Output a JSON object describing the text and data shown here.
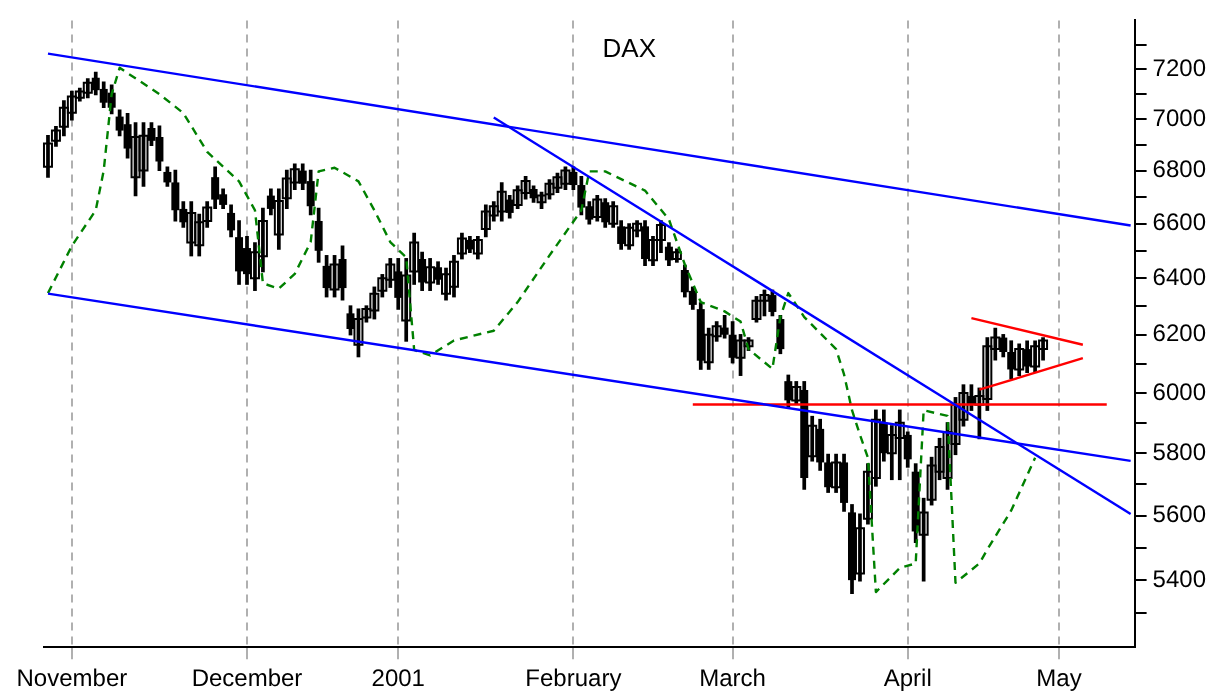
{
  "chart_data": {
    "type": "candlestick",
    "title": "DAX",
    "color": "#000000",
    "log": "y",
    "grid": "x",
    "legend": false,
    "categories": [
      null,
      null,
      null,
      "November",
      null,
      null,
      null,
      null,
      null,
      null,
      null,
      null,
      null,
      null,
      null,
      null,
      null,
      null,
      null,
      null,
      null,
      null,
      null,
      null,
      null,
      "December",
      null,
      null,
      null,
      null,
      null,
      null,
      null,
      null,
      null,
      null,
      null,
      null,
      null,
      null,
      null,
      null,
      null,
      null,
      "2001",
      null,
      null,
      null,
      null,
      null,
      null,
      null,
      null,
      null,
      null,
      null,
      null,
      null,
      null,
      null,
      null,
      null,
      null,
      null,
      null,
      null,
      "February",
      null,
      null,
      null,
      null,
      null,
      null,
      null,
      null,
      null,
      null,
      null,
      null,
      null,
      null,
      null,
      null,
      null,
      null,
      null,
      "March",
      null,
      null,
      null,
      null,
      null,
      null,
      null,
      null,
      null,
      null,
      null,
      null,
      null,
      null,
      null,
      null,
      null,
      null,
      null,
      null,
      null,
      "April",
      null,
      null,
      null,
      null,
      null,
      null,
      null,
      null,
      null,
      null,
      null,
      null,
      null,
      null,
      null,
      null,
      null,
      null,
      "May",
      null,
      null,
      null,
      null,
      null,
      null,
      null,
      null,
      null
    ],
    "ohlc": [
      [
        6815,
        6935,
        6775,
        6905
      ],
      [
        6915,
        6970,
        6895,
        6955
      ],
      [
        6970,
        7072,
        6935,
        7045
      ],
      [
        7025,
        7110,
        6997,
        7090
      ],
      [
        7085,
        7122,
        7072,
        7110
      ],
      [
        7105,
        7160,
        7085,
        7145
      ],
      [
        7165,
        7186,
        7097,
        7115
      ],
      [
        7120,
        7147,
        7047,
        7065
      ],
      [
        7105,
        7135,
        7022,
        7045
      ],
      [
        7010,
        7035,
        6935,
        6955
      ],
      [
        6980,
        7022,
        6849,
        6885
      ],
      [
        6775,
        6985,
        6705,
        6930
      ],
      [
        6800,
        6985,
        6741,
        6935
      ],
      [
        6965,
        6985,
        6897,
        6915
      ],
      [
        6930,
        6972,
        6801,
        6835
      ],
      [
        6795,
        6813,
        6741,
        6755
      ],
      [
        6755,
        6801,
        6610,
        6650
      ],
      [
        6655,
        6681,
        6587,
        6605
      ],
      [
        6530,
        6681,
        6482,
        6640
      ],
      [
        6520,
        6634,
        6482,
        6605
      ],
      [
        6610,
        6681,
        6587,
        6660
      ],
      [
        6775,
        6813,
        6657,
        6690
      ],
      [
        6710,
        6729,
        6657,
        6670
      ],
      [
        6640,
        6669,
        6552,
        6575
      ],
      [
        6550,
        6610,
        6379,
        6425
      ],
      [
        6510,
        6552,
        6379,
        6415
      ],
      [
        6400,
        6529,
        6357,
        6495
      ],
      [
        6480,
        6657,
        6424,
        6610
      ],
      [
        6705,
        6729,
        6634,
        6655
      ],
      [
        6560,
        6729,
        6506,
        6685
      ],
      [
        6695,
        6801,
        6657,
        6770
      ],
      [
        6755,
        6825,
        6729,
        6805
      ],
      [
        6800,
        6825,
        6729,
        6750
      ],
      [
        6760,
        6801,
        6634,
        6665
      ],
      [
        6610,
        6657,
        6459,
        6500
      ],
      [
        6445,
        6482,
        6334,
        6365
      ],
      [
        6360,
        6482,
        6334,
        6450
      ],
      [
        6470,
        6517,
        6323,
        6365
      ],
      [
        6275,
        6301,
        6200,
        6220
      ],
      [
        6165,
        6290,
        6124,
        6255
      ],
      [
        6260,
        6301,
        6245,
        6290
      ],
      [
        6285,
        6368,
        6256,
        6345
      ],
      [
        6355,
        6413,
        6334,
        6400
      ],
      [
        6395,
        6471,
        6368,
        6450
      ],
      [
        6425,
        6471,
        6290,
        6330
      ],
      [
        6250,
        6471,
        6178,
        6410
      ],
      [
        6425,
        6564,
        6379,
        6530
      ],
      [
        6470,
        6494,
        6357,
        6385
      ],
      [
        6385,
        6471,
        6357,
        6440
      ],
      [
        6440,
        6459,
        6379,
        6395
      ],
      [
        6345,
        6436,
        6323,
        6415
      ],
      [
        6370,
        6482,
        6334,
        6460
      ],
      [
        6490,
        6564,
        6471,
        6545
      ],
      [
        6540,
        6552,
        6494,
        6505
      ],
      [
        6490,
        6552,
        6471,
        6540
      ],
      [
        6580,
        6669,
        6552,
        6645
      ],
      [
        6630,
        6681,
        6610,
        6665
      ],
      [
        6645,
        6753,
        6610,
        6720
      ],
      [
        6690,
        6705,
        6622,
        6640
      ],
      [
        6670,
        6741,
        6657,
        6725
      ],
      [
        6715,
        6777,
        6693,
        6760
      ],
      [
        6730,
        6741,
        6681,
        6695
      ],
      [
        6680,
        6717,
        6657,
        6705
      ],
      [
        6710,
        6765,
        6693,
        6750
      ],
      [
        6735,
        6789,
        6717,
        6775
      ],
      [
        6750,
        6813,
        6729,
        6800
      ],
      [
        6795,
        6813,
        6729,
        6745
      ],
      [
        6745,
        6777,
        6634,
        6660
      ],
      [
        6665,
        6681,
        6599,
        6615
      ],
      [
        6625,
        6705,
        6610,
        6690
      ],
      [
        6680,
        6693,
        6587,
        6605
      ],
      [
        6600,
        6681,
        6587,
        6665
      ],
      [
        6590,
        6610,
        6506,
        6525
      ],
      [
        6520,
        6599,
        6506,
        6585
      ],
      [
        6575,
        6610,
        6552,
        6600
      ],
      [
        6590,
        6610,
        6447,
        6470
      ],
      [
        6465,
        6552,
        6447,
        6540
      ],
      [
        6540,
        6610,
        6494,
        6595
      ],
      [
        6515,
        6529,
        6447,
        6465
      ],
      [
        6470,
        6506,
        6459,
        6495
      ],
      [
        6430,
        6447,
        6334,
        6350
      ],
      [
        6355,
        6368,
        6290,
        6305
      ],
      [
        6290,
        6312,
        6081,
        6110
      ],
      [
        6105,
        6222,
        6081,
        6200
      ],
      [
        6195,
        6245,
        6178,
        6230
      ],
      [
        6225,
        6267,
        6189,
        6200
      ],
      [
        6200,
        6245,
        6103,
        6120
      ],
      [
        6120,
        6200,
        6060,
        6180
      ],
      [
        6160,
        6189,
        6146,
        6180
      ],
      [
        6255,
        6334,
        6245,
        6320
      ],
      [
        6320,
        6357,
        6267,
        6340
      ],
      [
        6340,
        6357,
        6267,
        6280
      ],
      [
        6255,
        6267,
        6135,
        6150
      ],
      [
        6040,
        6060,
        5953,
        5975
      ],
      [
        5975,
        6038,
        5963,
        6020
      ],
      [
        6010,
        6038,
        5684,
        5720
      ],
      [
        5790,
        5921,
        5775,
        5890
      ],
      [
        5880,
        5911,
        5745,
        5770
      ],
      [
        5770,
        5796,
        5674,
        5690
      ],
      [
        5690,
        5796,
        5674,
        5770
      ],
      [
        5770,
        5796,
        5614,
        5640
      ],
      [
        5610,
        5634,
        5360,
        5400
      ],
      [
        5420,
        5604,
        5398,
        5560
      ],
      [
        5590,
        5765,
        5574,
        5740
      ],
      [
        5720,
        5942,
        5694,
        5910
      ],
      [
        5900,
        5942,
        5775,
        5800
      ],
      [
        5800,
        5890,
        5715,
        5860
      ],
      [
        5850,
        5942,
        5715,
        5900
      ],
      [
        5860,
        5869,
        5755,
        5780
      ],
      [
        5740,
        5765,
        5516,
        5550
      ],
      [
        5540,
        5654,
        5398,
        5610
      ],
      [
        5650,
        5786,
        5634,
        5760
      ],
      [
        5740,
        5848,
        5715,
        5820
      ],
      [
        5720,
        5900,
        5684,
        5870
      ],
      [
        5830,
        5984,
        5796,
        5960
      ],
      [
        5910,
        6027,
        5890,
        6000
      ],
      [
        5990,
        6027,
        5942,
        5960
      ],
      [
        5960,
        6016,
        5848,
        5990
      ],
      [
        5980,
        6189,
        5942,
        6160
      ],
      [
        6150,
        6222,
        6113,
        6190
      ],
      [
        6190,
        6200,
        6124,
        6140
      ],
      [
        6140,
        6178,
        6049,
        6080
      ],
      [
        6080,
        6167,
        6060,
        6150
      ],
      [
        6150,
        6178,
        6070,
        6090
      ],
      [
        6090,
        6178,
        6070,
        6160
      ],
      [
        6150,
        6189,
        6113,
        6180
      ],
      null,
      null,
      null,
      null,
      null,
      null,
      null,
      null,
      null,
      null,
      null
    ],
    "ylim": [
      5200,
      7400
    ],
    "yticks": [
      {
        "value": 5300,
        "label": null
      },
      5400,
      {
        "value": 5500,
        "label": null
      },
      5600,
      {
        "value": 5700,
        "label": null
      },
      5800,
      {
        "value": 5900,
        "label": null
      },
      6000,
      {
        "value": 6100,
        "label": null
      },
      6200,
      {
        "value": 6300,
        "label": null
      },
      6400,
      {
        "value": 6500,
        "label": null
      },
      6600,
      {
        "value": 6700,
        "label": null
      },
      6800,
      {
        "value": 6900,
        "label": null
      },
      7000,
      {
        "value": 7100,
        "label": null
      },
      7200,
      {
        "value": 7300,
        "label": null
      }
    ],
    "series": [
      {
        "type": "line",
        "color": "#0000ff",
        "values": [
          7263,
          null,
          null,
          null,
          null,
          null,
          null,
          null,
          null,
          null,
          null,
          null,
          null,
          null,
          null,
          null,
          null,
          null,
          null,
          null,
          null,
          null,
          null,
          null,
          null,
          null,
          null,
          null,
          null,
          null,
          null,
          null,
          null,
          null,
          null,
          null,
          null,
          null,
          null,
          null,
          null,
          null,
          null,
          null,
          null,
          null,
          null,
          null,
          null,
          null,
          null,
          null,
          null,
          null,
          null,
          null,
          null,
          null,
          null,
          null,
          null,
          null,
          null,
          null,
          null,
          null,
          null,
          null,
          null,
          null,
          null,
          null,
          null,
          null,
          null,
          null,
          null,
          null,
          null,
          null,
          null,
          null,
          null,
          null,
          null,
          null,
          null,
          null,
          null,
          null,
          null,
          null,
          null,
          null,
          null,
          null,
          null,
          null,
          null,
          null,
          null,
          null,
          null,
          null,
          null,
          null,
          null,
          null,
          null,
          null,
          null,
          null,
          null,
          null,
          null,
          null,
          null,
          null,
          null,
          null,
          null,
          null,
          null,
          null,
          null,
          null,
          null,
          null,
          null,
          null,
          null,
          null,
          null,
          null,
          null,
          null,
          6593
        ]
      },
      {
        "type": "line",
        "color": "#0000ff",
        "values": [
          6345,
          null,
          null,
          null,
          null,
          null,
          null,
          null,
          null,
          null,
          null,
          null,
          null,
          null,
          null,
          null,
          null,
          null,
          null,
          null,
          null,
          null,
          null,
          null,
          null,
          null,
          null,
          null,
          null,
          null,
          null,
          null,
          null,
          null,
          null,
          null,
          null,
          null,
          null,
          null,
          null,
          null,
          null,
          null,
          null,
          null,
          null,
          null,
          null,
          null,
          null,
          null,
          null,
          null,
          null,
          null,
          null,
          null,
          null,
          null,
          null,
          null,
          null,
          null,
          null,
          null,
          null,
          null,
          null,
          null,
          null,
          null,
          null,
          null,
          null,
          null,
          null,
          null,
          null,
          null,
          null,
          null,
          null,
          null,
          null,
          null,
          null,
          null,
          null,
          null,
          null,
          null,
          null,
          null,
          null,
          null,
          null,
          null,
          null,
          null,
          null,
          null,
          null,
          null,
          null,
          null,
          null,
          null,
          null,
          null,
          null,
          null,
          null,
          null,
          null,
          null,
          null,
          null,
          null,
          null,
          null,
          null,
          null,
          null,
          null,
          null,
          null,
          null,
          null,
          null,
          null,
          null,
          null,
          null,
          null,
          null,
          5775
        ]
      },
      {
        "type": "line",
        "color": "#0000ff",
        "values": [
          null,
          null,
          null,
          null,
          null,
          null,
          null,
          null,
          null,
          null,
          null,
          null,
          null,
          null,
          null,
          null,
          null,
          null,
          null,
          null,
          null,
          null,
          null,
          null,
          null,
          null,
          null,
          null,
          null,
          null,
          null,
          null,
          null,
          null,
          null,
          null,
          null,
          null,
          null,
          null,
          null,
          null,
          null,
          null,
          null,
          null,
          null,
          null,
          null,
          null,
          null,
          null,
          null,
          null,
          null,
          null,
          7006,
          null,
          null,
          null,
          null,
          null,
          null,
          null,
          null,
          null,
          null,
          null,
          null,
          null,
          null,
          null,
          null,
          null,
          null,
          null,
          null,
          null,
          null,
          null,
          null,
          null,
          null,
          null,
          null,
          null,
          null,
          null,
          null,
          null,
          null,
          null,
          null,
          null,
          null,
          null,
          null,
          null,
          null,
          null,
          null,
          null,
          null,
          null,
          null,
          null,
          null,
          null,
          null,
          null,
          null,
          null,
          null,
          null,
          null,
          null,
          null,
          null,
          null,
          null,
          null,
          null,
          null,
          null,
          null,
          null,
          null,
          null,
          null,
          null,
          null,
          null,
          null,
          null,
          null,
          null,
          5605
        ]
      },
      {
        "type": "line",
        "color": "#ff0000",
        "values": [
          null,
          null,
          null,
          null,
          null,
          null,
          null,
          null,
          null,
          null,
          null,
          null,
          null,
          null,
          null,
          null,
          null,
          null,
          null,
          null,
          null,
          null,
          null,
          null,
          null,
          null,
          null,
          null,
          null,
          null,
          null,
          null,
          null,
          null,
          null,
          null,
          null,
          null,
          null,
          null,
          null,
          null,
          null,
          null,
          null,
          null,
          null,
          null,
          null,
          null,
          null,
          null,
          null,
          null,
          null,
          null,
          null,
          null,
          null,
          null,
          null,
          null,
          null,
          null,
          null,
          null,
          null,
          null,
          null,
          null,
          null,
          null,
          null,
          null,
          null,
          null,
          null,
          null,
          null,
          null,
          null,
          5961,
          null,
          null,
          null,
          null,
          null,
          null,
          null,
          null,
          null,
          null,
          null,
          null,
          null,
          null,
          null,
          null,
          null,
          null,
          null,
          null,
          null,
          null,
          null,
          null,
          null,
          null,
          null,
          null,
          null,
          null,
          null,
          null,
          null,
          null,
          null,
          null,
          null,
          null,
          null,
          null,
          null,
          null,
          null,
          null,
          null,
          null,
          null,
          null,
          null,
          null,
          null,
          5961,
          null,
          null,
          null
        ]
      },
      {
        "type": "line",
        "color": "#ff0000",
        "values": [
          null,
          null,
          null,
          null,
          null,
          null,
          null,
          null,
          null,
          null,
          null,
          null,
          null,
          null,
          null,
          null,
          null,
          null,
          null,
          null,
          null,
          null,
          null,
          null,
          null,
          null,
          null,
          null,
          null,
          null,
          null,
          null,
          null,
          null,
          null,
          null,
          null,
          null,
          null,
          null,
          null,
          null,
          null,
          null,
          null,
          null,
          null,
          null,
          null,
          null,
          null,
          null,
          null,
          null,
          null,
          null,
          null,
          null,
          null,
          null,
          null,
          null,
          null,
          null,
          null,
          null,
          null,
          null,
          null,
          null,
          null,
          null,
          null,
          null,
          null,
          null,
          null,
          null,
          null,
          null,
          null,
          null,
          null,
          null,
          null,
          null,
          null,
          null,
          null,
          null,
          null,
          null,
          null,
          null,
          null,
          null,
          null,
          null,
          null,
          null,
          null,
          null,
          null,
          null,
          null,
          null,
          null,
          null,
          null,
          null,
          null,
          null,
          null,
          null,
          null,
          null,
          6258,
          null,
          null,
          null,
          null,
          null,
          null,
          null,
          null,
          null,
          null,
          null,
          null,
          null,
          6165,
          null,
          null,
          null,
          null,
          null,
          null
        ]
      },
      {
        "type": "line",
        "color": "#ff0000",
        "values": [
          null,
          null,
          null,
          null,
          null,
          null,
          null,
          null,
          null,
          null,
          null,
          null,
          null,
          null,
          null,
          null,
          null,
          null,
          null,
          null,
          null,
          null,
          null,
          null,
          null,
          null,
          null,
          null,
          null,
          null,
          null,
          null,
          null,
          null,
          null,
          null,
          null,
          null,
          null,
          null,
          null,
          null,
          null,
          null,
          null,
          null,
          null,
          null,
          null,
          null,
          null,
          null,
          null,
          null,
          null,
          null,
          null,
          null,
          null,
          null,
          null,
          null,
          null,
          null,
          null,
          null,
          null,
          null,
          null,
          null,
          null,
          null,
          null,
          null,
          null,
          null,
          null,
          null,
          null,
          null,
          null,
          null,
          null,
          null,
          null,
          null,
          null,
          null,
          null,
          null,
          null,
          null,
          null,
          null,
          null,
          null,
          null,
          null,
          null,
          null,
          null,
          null,
          null,
          null,
          null,
          null,
          null,
          null,
          null,
          null,
          null,
          null,
          null,
          null,
          null,
          null,
          null,
          6011,
          null,
          null,
          null,
          null,
          null,
          null,
          null,
          null,
          null,
          null,
          null,
          null,
          6119,
          null,
          null,
          null,
          null,
          null,
          null
        ]
      },
      {
        "type": "line",
        "color": "#008000",
        "line_style": "dashed",
        "values": [
          6347,
          null,
          null,
          6518,
          null,
          null,
          6650,
          6800,
          7099,
          7205,
          null,
          null,
          null,
          null,
          7099,
          null,
          null,
          7024,
          null,
          null,
          6872,
          null,
          null,
          null,
          6759,
          null,
          6650,
          6382,
          null,
          6363,
          null,
          6416,
          null,
          6532,
          6797,
          null,
          6811,
          null,
          null,
          6759,
          null,
          6650,
          null,
          6532,
          null,
          6476,
          6147,
          null,
          6128,
          null,
          null,
          6180,
          null,
          null,
          null,
          null,
          6214,
          null,
          null,
          6315,
          null,
          null,
          null,
          6483,
          null,
          null,
          null,
          6650,
          6797,
          null,
          6797,
          null,
          null,
          null,
          null,
          6724,
          null,
          null,
          6616,
          null,
          6450,
          null,
          6315,
          null,
          null,
          6282,
          null,
          6246,
          6150,
          null,
          null,
          6082,
          6262,
          6347,
          null,
          6262,
          null,
          null,
          null,
          6150,
          6063,
          5942,
          5860,
          5785,
          5364,
          null,
          null,
          5437,
          null,
          5451,
          5942,
          null,
          null,
          5923,
          5392,
          null,
          null,
          5451,
          5494,
          null,
          null,
          5616,
          null,
          null,
          5785,
          null,
          null,
          null,
          null,
          null,
          null,
          null,
          null,
          null,
          null,
          null,
          null
        ]
      }
    ]
  }
}
